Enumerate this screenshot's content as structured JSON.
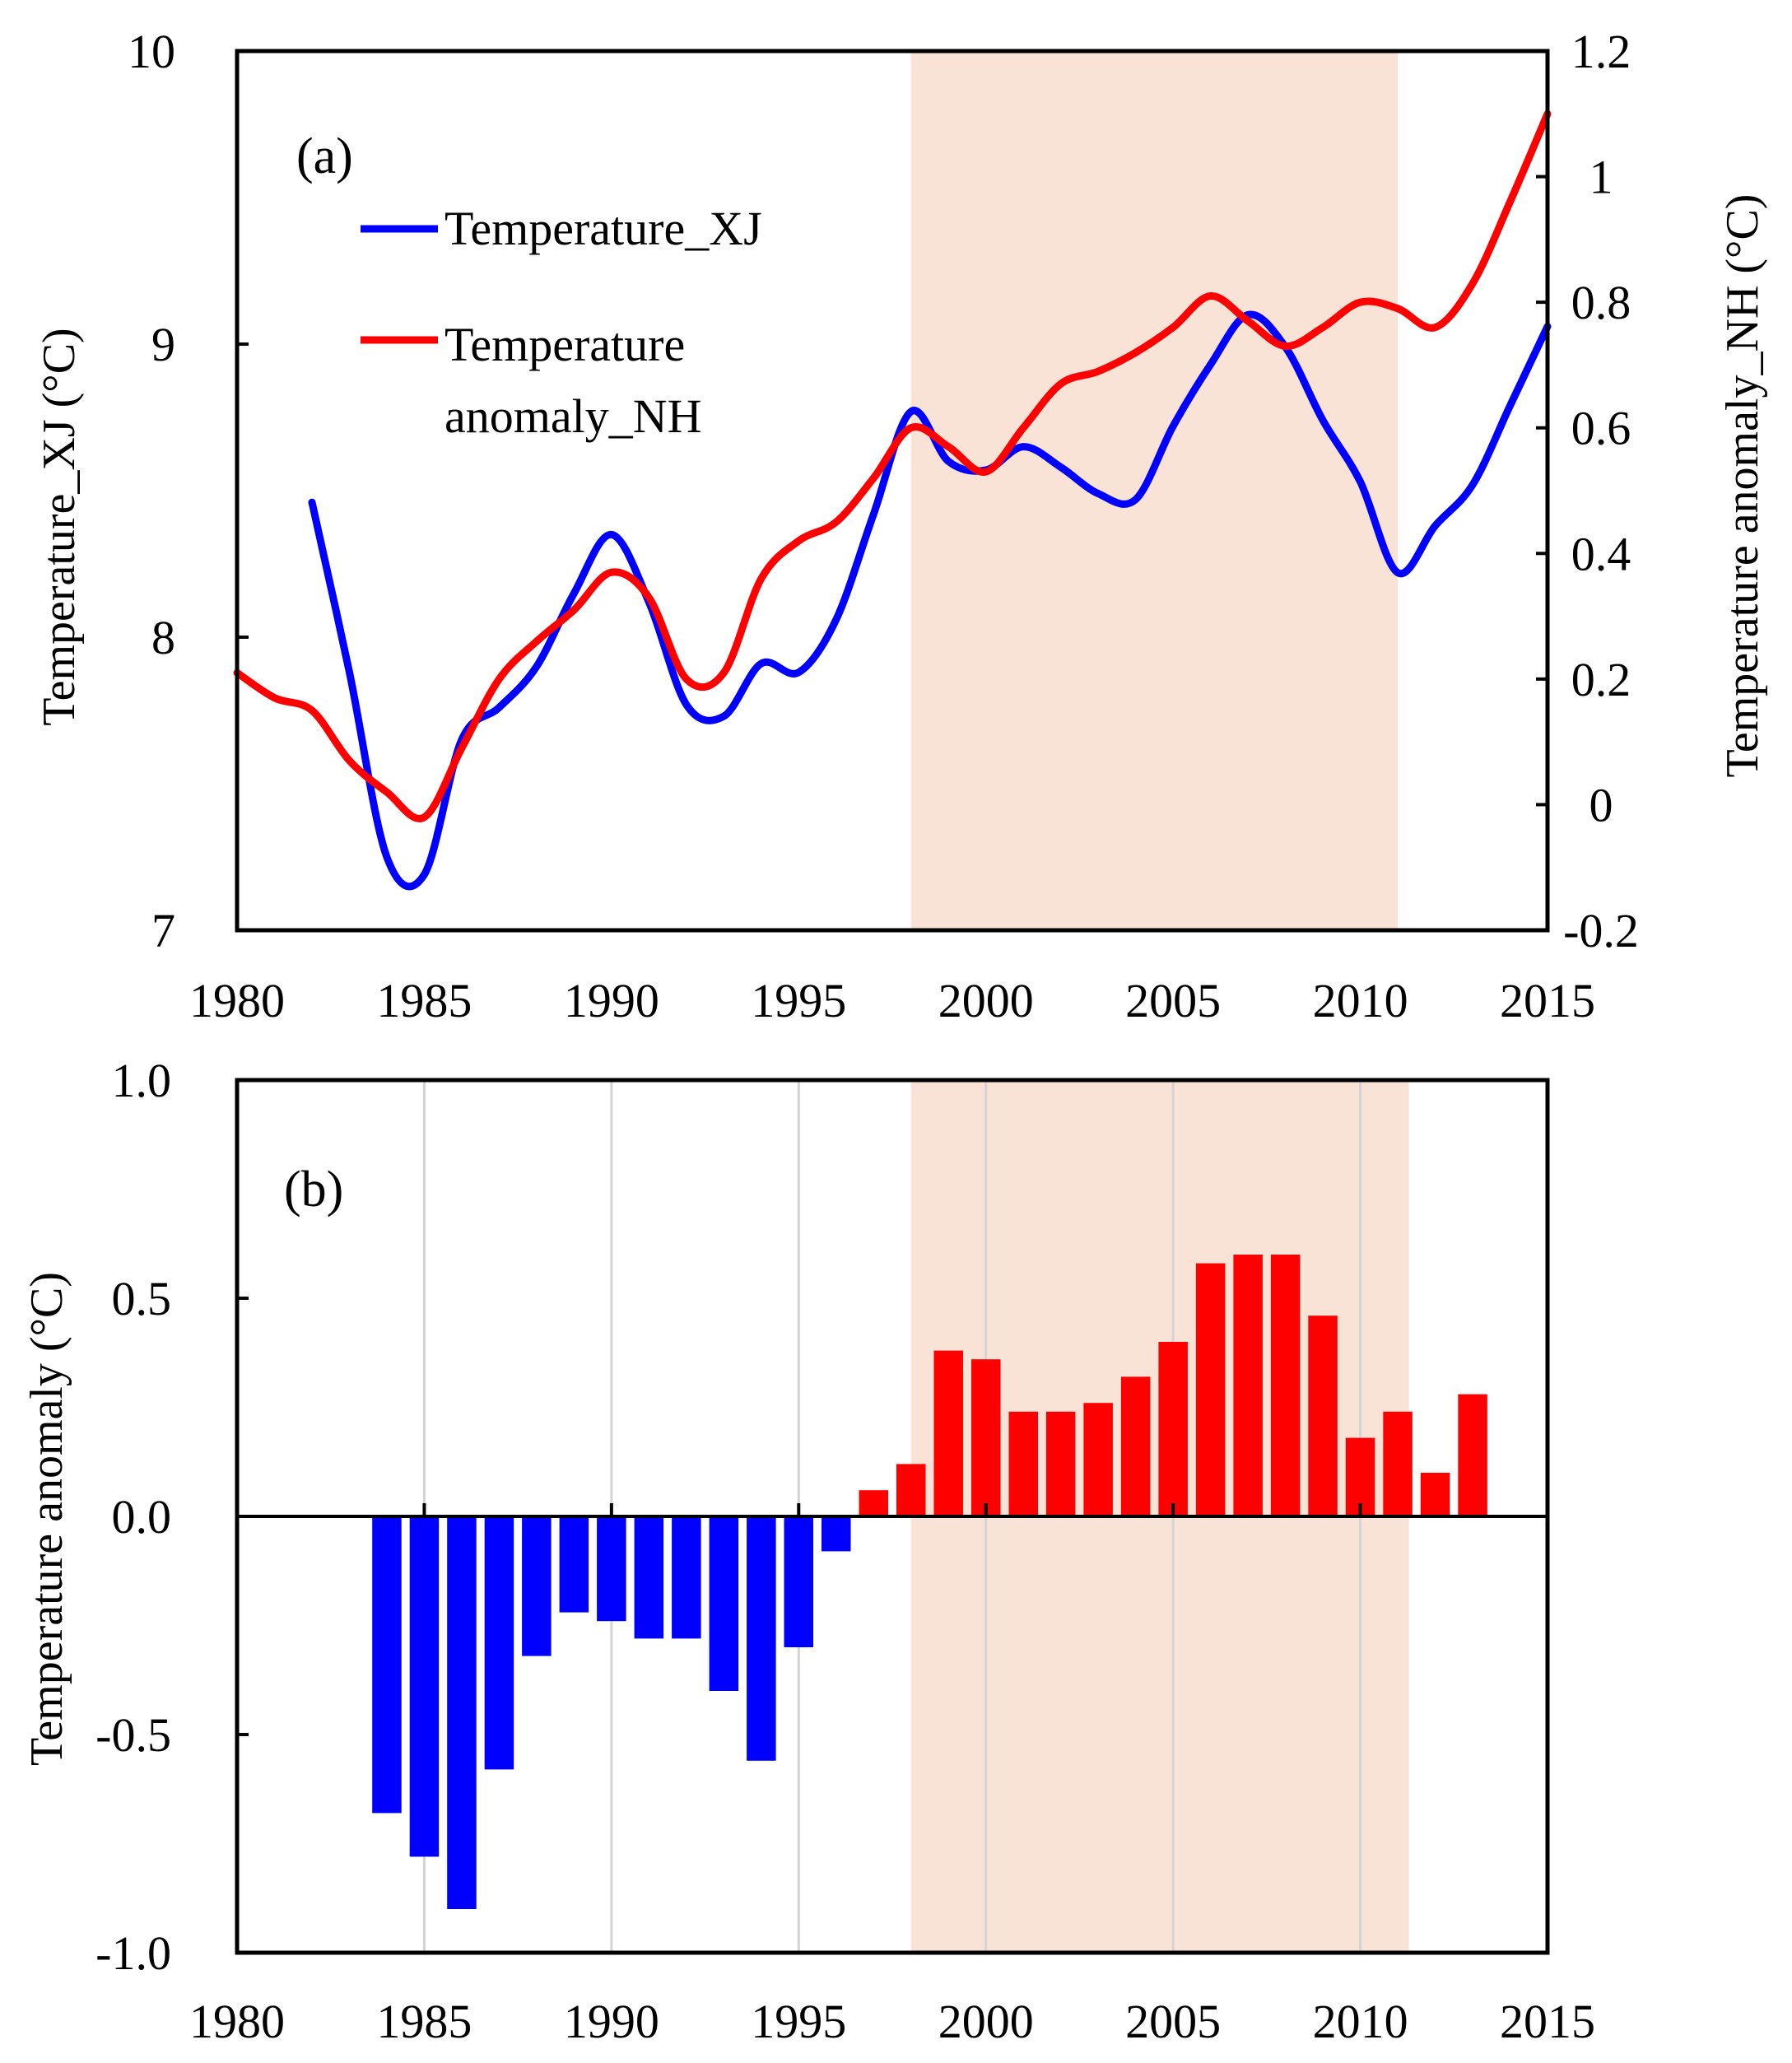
{
  "chart_data": [
    {
      "panel": "(a)",
      "type": "line",
      "xlabel": "",
      "ylabel": "Temperature_XJ (°C)",
      "y2label": "Temperature anomaly_NH (°C)",
      "xlim": [
        1980,
        2015
      ],
      "ylim": [
        7,
        10
      ],
      "y2lim": [
        -0.2,
        1.2
      ],
      "xticks": [
        "1980",
        "1985",
        "1990",
        "1995",
        "2000",
        "2005",
        "2010",
        "2015"
      ],
      "yticks": [
        "7",
        "8",
        "9",
        "10"
      ],
      "y2ticks": [
        "-0.2",
        "0",
        "0.2",
        "0.4",
        "0.6",
        "0.8",
        "1",
        "1.2"
      ],
      "shaded_period": [
        1998,
        2011
      ],
      "legend": [
        "Temperature_XJ",
        "Temperature anomaly_NH"
      ],
      "series": [
        {
          "name": "Temperature_XJ",
          "axis": "left",
          "color": "#0000ff",
          "x": [
            1982,
            1983,
            1984,
            1985,
            1986,
            1987,
            1988,
            1989,
            1990,
            1991,
            1992,
            1993,
            1994,
            1995,
            1996,
            1997,
            1998,
            1999,
            2000,
            2001,
            2002,
            2003,
            2004,
            2005,
            2006,
            2007,
            2008,
            2009,
            2010,
            2011,
            2012,
            2013,
            2014,
            2015
          ],
          "values": [
            8.46,
            7.88,
            7.25,
            7.19,
            7.65,
            7.76,
            7.9,
            8.15,
            8.35,
            8.12,
            7.77,
            7.73,
            7.91,
            7.88,
            8.06,
            8.42,
            8.77,
            8.6,
            8.57,
            8.65,
            8.58,
            8.49,
            8.47,
            8.72,
            8.93,
            9.1,
            8.99,
            8.74,
            8.53,
            8.22,
            8.38,
            8.52,
            8.79,
            9.06
          ]
        },
        {
          "name": "Temperature anomaly_NH",
          "axis": "right",
          "color": "#ff0000",
          "x": [
            1980,
            1981,
            1982,
            1983,
            1984,
            1985,
            1986,
            1987,
            1988,
            1989,
            1990,
            1991,
            1992,
            1993,
            1994,
            1995,
            1996,
            1997,
            1998,
            1999,
            2000,
            2001,
            2002,
            2003,
            2004,
            2005,
            2006,
            2007,
            2008,
            2009,
            2010,
            2011,
            2012,
            2013,
            2014,
            2015
          ],
          "values": [
            0.21,
            0.17,
            0.15,
            0.07,
            0.02,
            -0.02,
            0.09,
            0.2,
            0.26,
            0.31,
            0.37,
            0.33,
            0.2,
            0.21,
            0.36,
            0.42,
            0.45,
            0.52,
            0.6,
            0.57,
            0.53,
            0.6,
            0.67,
            0.69,
            0.72,
            0.76,
            0.81,
            0.77,
            0.73,
            0.76,
            0.8,
            0.79,
            0.76,
            0.83,
            0.96,
            1.1
          ]
        }
      ]
    },
    {
      "panel": "(b)",
      "type": "bar",
      "xlabel": "",
      "ylabel": "Temperature anomaly (°C)",
      "xlim": [
        1980,
        2015
      ],
      "ylim": [
        -1.0,
        1.0
      ],
      "xticks": [
        "1980",
        "1985",
        "1990",
        "1995",
        "2000",
        "2005",
        "2010",
        "2015"
      ],
      "yticks": [
        "-1.0",
        "-0.5",
        "0.0",
        "0.5",
        "1.0"
      ],
      "shaded_period": [
        1998,
        2011.3
      ],
      "positive_color": "#ff0000",
      "negative_color": "#0000ff",
      "categories": [
        1984,
        1985,
        1986,
        1987,
        1988,
        1989,
        1990,
        1991,
        1992,
        1993,
        1994,
        1995,
        1996,
        1997,
        1998,
        1999,
        2000,
        2001,
        2002,
        2003,
        2004,
        2005,
        2006,
        2007,
        2008,
        2009,
        2010,
        2011,
        2012,
        2013
      ],
      "values": [
        -0.68,
        -0.78,
        -0.9,
        -0.58,
        -0.32,
        -0.22,
        -0.24,
        -0.28,
        -0.28,
        -0.4,
        -0.56,
        -0.3,
        -0.08,
        0.06,
        0.12,
        0.38,
        0.36,
        0.24,
        0.24,
        0.26,
        0.32,
        0.4,
        0.58,
        0.6,
        0.6,
        0.46,
        0.18,
        0.24,
        0.1,
        0.28
      ]
    }
  ]
}
